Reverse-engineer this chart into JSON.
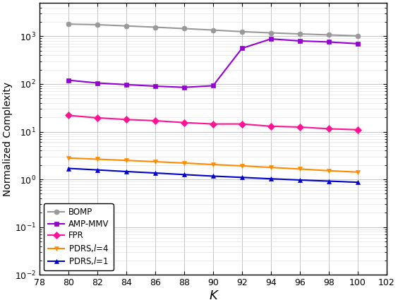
{
  "K": [
    80,
    82,
    84,
    86,
    88,
    90,
    92,
    94,
    96,
    98,
    100
  ],
  "BOMP": [
    1800,
    1750,
    1650,
    1550,
    1450,
    1350,
    1250,
    1180,
    1120,
    1070,
    1020
  ],
  "AMP_MMV": [
    120,
    105,
    97,
    90,
    85,
    92,
    560,
    880,
    800,
    760,
    700
  ],
  "FPR": [
    22,
    19.5,
    18,
    17,
    15.5,
    14.5,
    14.5,
    13,
    12.5,
    11.5,
    11
  ],
  "PDRS_l4": [
    2.8,
    2.65,
    2.5,
    2.35,
    2.2,
    2.05,
    1.92,
    1.78,
    1.65,
    1.52,
    1.42
  ],
  "PDRS_l1": [
    1.7,
    1.58,
    1.46,
    1.36,
    1.26,
    1.17,
    1.1,
    1.03,
    0.97,
    0.92,
    0.87
  ],
  "colors": {
    "BOMP": "#999999",
    "AMP_MMV": "#9400D3",
    "FPR": "#FF1493",
    "PDRS_l4": "#FF8C00",
    "PDRS_l1": "#0000CD"
  },
  "markers": {
    "BOMP": "o",
    "AMP_MMV": "s",
    "FPR": "D",
    "PDRS_l4": "v",
    "PDRS_l1": "^"
  },
  "labels": {
    "BOMP": "BOMP",
    "AMP_MMV": "AMP-MMV",
    "FPR": "FPR",
    "PDRS_l4": "PDRS,l=4",
    "PDRS_l1": "PDRS,l=1"
  },
  "xlabel": "K",
  "ylabel": "Normalized Complexity",
  "xlim": [
    78,
    102
  ],
  "ylim": [
    0.01,
    5000
  ],
  "xticks": [
    78,
    80,
    82,
    84,
    86,
    88,
    90,
    92,
    94,
    96,
    98,
    100,
    102
  ]
}
